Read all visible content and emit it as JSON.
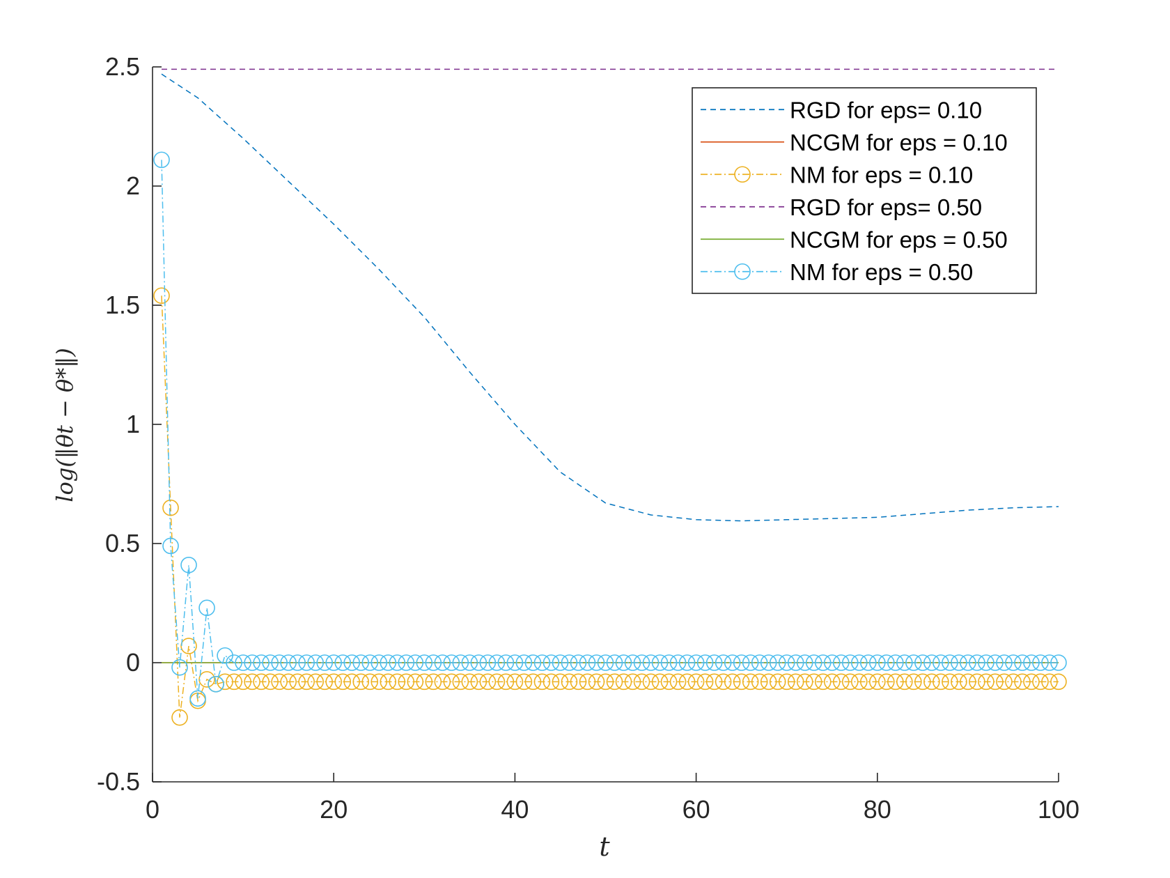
{
  "chart_data": {
    "type": "line",
    "title": "",
    "xlabel": "t",
    "ylabel": "log(‖θt − θ*‖)",
    "xlim": [
      0,
      100
    ],
    "ylim": [
      -0.5,
      2.5
    ],
    "xticks": [
      0,
      20,
      40,
      60,
      80,
      100
    ],
    "xtick_labels": [
      "0",
      "20",
      "40",
      "60",
      "80",
      "100"
    ],
    "yticks": [
      -0.5,
      0,
      0.5,
      1,
      1.5,
      2,
      2.5
    ],
    "ytick_labels": [
      "-0.5",
      "0",
      "0.5",
      "1",
      "1.5",
      "2",
      "2.5"
    ],
    "grid": false,
    "legend_position": "top-right",
    "series": [
      {
        "name": "RGD for eps= 0.10",
        "color": "#0072BD",
        "style": "dashed",
        "marker": "none",
        "x": [
          1,
          5,
          10,
          15,
          20,
          25,
          30,
          35,
          40,
          45,
          50,
          55,
          60,
          65,
          70,
          75,
          80,
          85,
          90,
          95,
          100
        ],
        "values": [
          2.47,
          2.37,
          2.2,
          2.02,
          1.84,
          1.65,
          1.45,
          1.22,
          1.0,
          0.8,
          0.67,
          0.62,
          0.6,
          0.595,
          0.6,
          0.605,
          0.61,
          0.625,
          0.64,
          0.65,
          0.655
        ]
      },
      {
        "name": "NCGM for eps = 0.10",
        "color": "#D95319",
        "style": "solid",
        "marker": "none",
        "x": [
          1,
          100
        ],
        "values": [
          0.0,
          0.0
        ]
      },
      {
        "name": "NM for eps = 0.10",
        "color": "#EDB120",
        "style": "dashdot",
        "marker": "circle",
        "x": [
          1,
          2,
          3,
          4,
          5,
          6,
          7,
          8,
          9,
          10,
          11,
          12,
          13,
          14,
          15,
          16,
          17,
          18,
          19,
          20,
          21,
          22,
          23,
          24,
          25,
          26,
          27,
          28,
          29,
          30,
          31,
          32,
          33,
          34,
          35,
          36,
          37,
          38,
          39,
          40,
          41,
          42,
          43,
          44,
          45,
          46,
          47,
          48,
          49,
          50,
          51,
          52,
          53,
          54,
          55,
          56,
          57,
          58,
          59,
          60,
          61,
          62,
          63,
          64,
          65,
          66,
          67,
          68,
          69,
          70,
          71,
          72,
          73,
          74,
          75,
          76,
          77,
          78,
          79,
          80,
          81,
          82,
          83,
          84,
          85,
          86,
          87,
          88,
          89,
          90,
          91,
          92,
          93,
          94,
          95,
          96,
          97,
          98,
          99,
          100
        ],
        "values": [
          1.54,
          0.65,
          -0.23,
          0.07,
          -0.16,
          -0.07,
          -0.09,
          -0.08,
          -0.08,
          -0.08,
          -0.08,
          -0.08,
          -0.08,
          -0.08,
          -0.08,
          -0.08,
          -0.08,
          -0.08,
          -0.08,
          -0.08,
          -0.08,
          -0.08,
          -0.08,
          -0.08,
          -0.08,
          -0.08,
          -0.08,
          -0.08,
          -0.08,
          -0.08,
          -0.08,
          -0.08,
          -0.08,
          -0.08,
          -0.08,
          -0.08,
          -0.08,
          -0.08,
          -0.08,
          -0.08,
          -0.08,
          -0.08,
          -0.08,
          -0.08,
          -0.08,
          -0.08,
          -0.08,
          -0.08,
          -0.08,
          -0.08,
          -0.08,
          -0.08,
          -0.08,
          -0.08,
          -0.08,
          -0.08,
          -0.08,
          -0.08,
          -0.08,
          -0.08,
          -0.08,
          -0.08,
          -0.08,
          -0.08,
          -0.08,
          -0.08,
          -0.08,
          -0.08,
          -0.08,
          -0.08,
          -0.08,
          -0.08,
          -0.08,
          -0.08,
          -0.08,
          -0.08,
          -0.08,
          -0.08,
          -0.08,
          -0.08,
          -0.08,
          -0.08,
          -0.08,
          -0.08,
          -0.08,
          -0.08,
          -0.08,
          -0.08,
          -0.08,
          -0.08,
          -0.08,
          -0.08,
          -0.08,
          -0.08,
          -0.08,
          -0.08,
          -0.08,
          -0.08,
          -0.08,
          -0.08
        ]
      },
      {
        "name": "RGD for eps= 0.50",
        "color": "#7E2F8E",
        "style": "dashed",
        "marker": "none",
        "x": [
          1,
          100
        ],
        "values": [
          2.49,
          2.49
        ]
      },
      {
        "name": "NCGM for eps = 0.50",
        "color": "#77AC30",
        "style": "solid",
        "marker": "none",
        "x": [
          1,
          100
        ],
        "values": [
          0.0,
          0.0
        ]
      },
      {
        "name": "NM for eps = 0.50",
        "color": "#4DBEEE",
        "style": "dashdot",
        "marker": "circle",
        "x": [
          1,
          2,
          3,
          4,
          5,
          6,
          7,
          8,
          9,
          10,
          11,
          12,
          13,
          14,
          15,
          16,
          17,
          18,
          19,
          20,
          21,
          22,
          23,
          24,
          25,
          26,
          27,
          28,
          29,
          30,
          31,
          32,
          33,
          34,
          35,
          36,
          37,
          38,
          39,
          40,
          41,
          42,
          43,
          44,
          45,
          46,
          47,
          48,
          49,
          50,
          51,
          52,
          53,
          54,
          55,
          56,
          57,
          58,
          59,
          60,
          61,
          62,
          63,
          64,
          65,
          66,
          67,
          68,
          69,
          70,
          71,
          72,
          73,
          74,
          75,
          76,
          77,
          78,
          79,
          80,
          81,
          82,
          83,
          84,
          85,
          86,
          87,
          88,
          89,
          90,
          91,
          92,
          93,
          94,
          95,
          96,
          97,
          98,
          99,
          100
        ],
        "values": [
          2.11,
          0.49,
          -0.02,
          0.41,
          -0.15,
          0.23,
          -0.09,
          0.03,
          0.0,
          0.0,
          0.0,
          0.0,
          0.0,
          0.0,
          0.0,
          0.0,
          0.0,
          0.0,
          0.0,
          0.0,
          0.0,
          0.0,
          0.0,
          0.0,
          0.0,
          0.0,
          0.0,
          0.0,
          0.0,
          0.0,
          0.0,
          0.0,
          0.0,
          0.0,
          0.0,
          0.0,
          0.0,
          0.0,
          0.0,
          0.0,
          0.0,
          0.0,
          0.0,
          0.0,
          0.0,
          0.0,
          0.0,
          0.0,
          0.0,
          0.0,
          0.0,
          0.0,
          0.0,
          0.0,
          0.0,
          0.0,
          0.0,
          0.0,
          0.0,
          0.0,
          0.0,
          0.0,
          0.0,
          0.0,
          0.0,
          0.0,
          0.0,
          0.0,
          0.0,
          0.0,
          0.0,
          0.0,
          0.0,
          0.0,
          0.0,
          0.0,
          0.0,
          0.0,
          0.0,
          0.0,
          0.0,
          0.0,
          0.0,
          0.0,
          0.0,
          0.0,
          0.0,
          0.0,
          0.0,
          0.0,
          0.0,
          0.0,
          0.0,
          0.0,
          0.0,
          0.0,
          0.0,
          0.0,
          0.0,
          0.0
        ]
      }
    ]
  }
}
